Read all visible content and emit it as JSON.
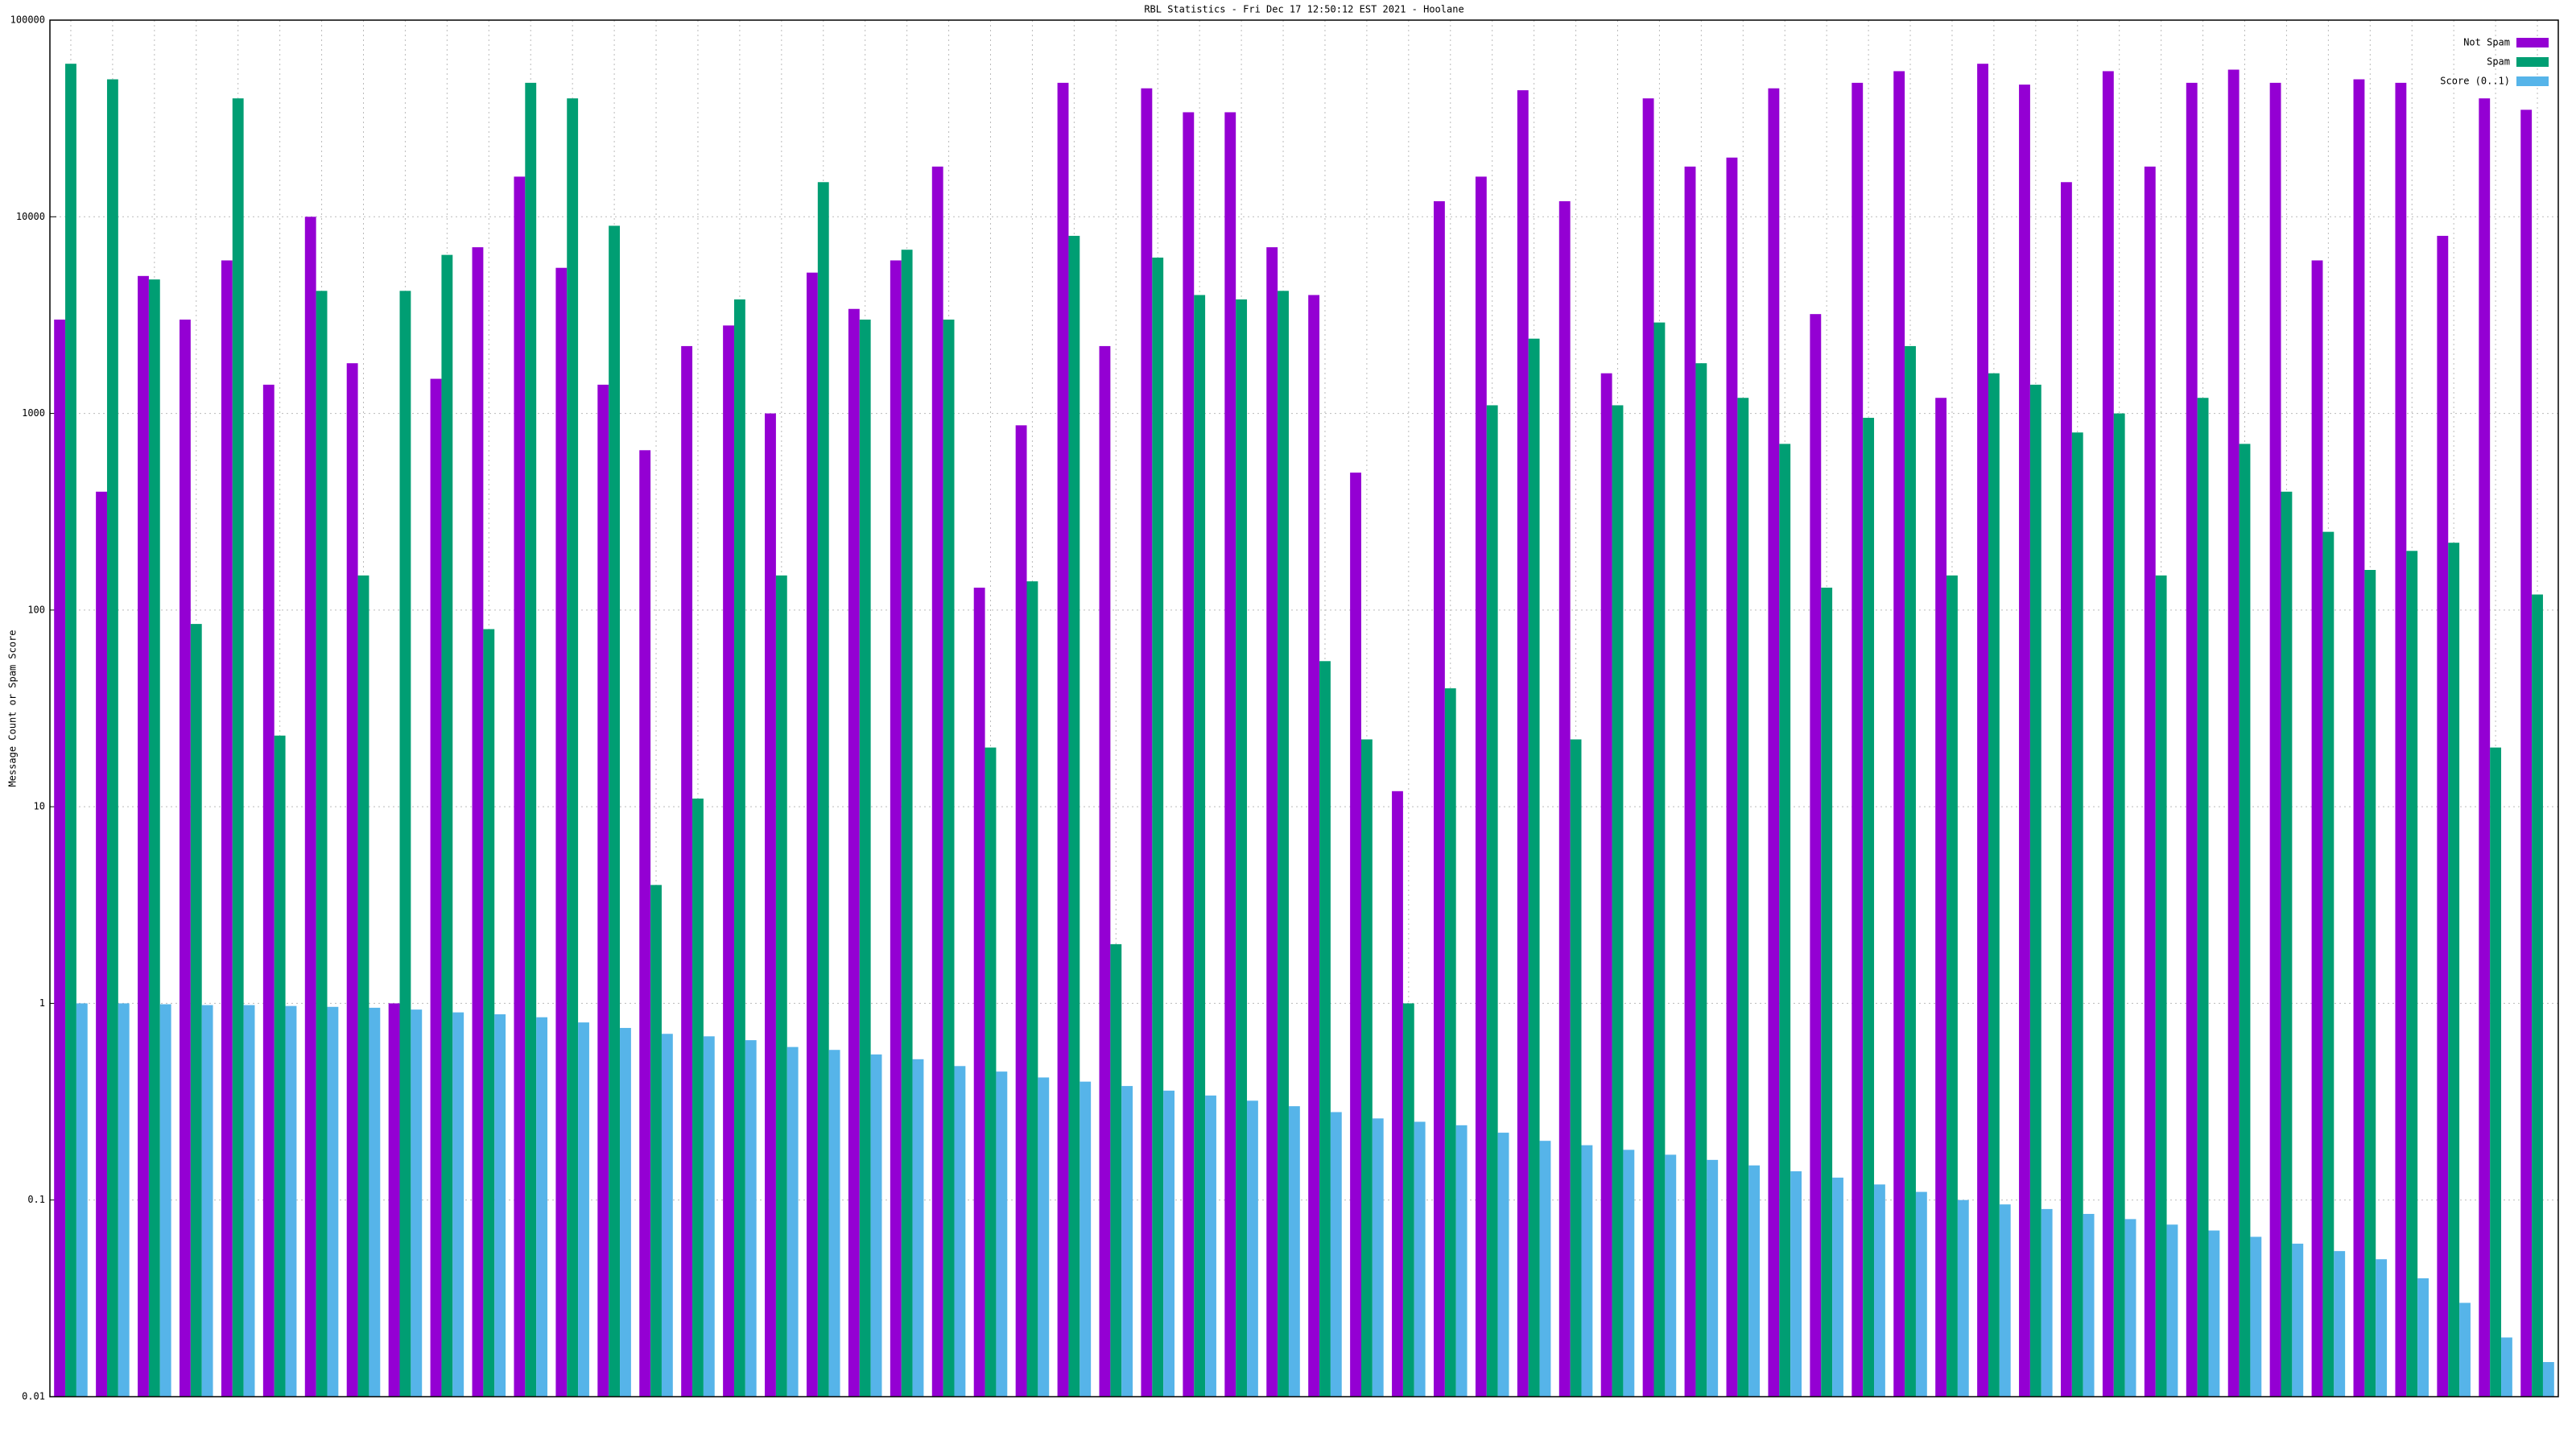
{
  "chart_data": {
    "type": "bar",
    "title": "RBL Statistics - Fri Dec 17 12:50:12 EST 2021 - Hoolane",
    "y_label": "Message Count or Spam Score",
    "log_y": true,
    "grid": true,
    "legend": "top-right",
    "ylim": [
      0.01,
      100000
    ],
    "yticks": [
      0.01,
      0.1,
      1,
      10,
      100,
      1000,
      10000,
      100000
    ],
    "categories": [
      null,
      null,
      null,
      null,
      null,
      null,
      null,
      null,
      null,
      null,
      null,
      null,
      null,
      null,
      null,
      null,
      null,
      null,
      null,
      null,
      null,
      null,
      null,
      null,
      null,
      null,
      null,
      null,
      null,
      null,
      null,
      null,
      null,
      null,
      null,
      null,
      null,
      null,
      null,
      null,
      null,
      null,
      null,
      null,
      null,
      null,
      null,
      null,
      null,
      null,
      null,
      null,
      null,
      null,
      null,
      null,
      null,
      null,
      null,
      null
    ],
    "series": [
      {
        "name": "Not Spam",
        "color": "#9400d3",
        "values": [
          3000,
          400,
          5000,
          3000,
          6000,
          1400,
          10000,
          1800,
          1,
          1500,
          7000,
          16000,
          5500,
          1400,
          650,
          2200,
          2800,
          1000,
          5200,
          3400,
          6000,
          18000,
          130,
          870,
          48000,
          2200,
          45000,
          34000,
          34000,
          7000,
          4000,
          500,
          12,
          12000,
          16000,
          44000,
          12000,
          1600,
          40000,
          18000,
          20000,
          45000,
          3200,
          48000,
          55000,
          1200,
          60000,
          47000,
          15000,
          55000,
          18000,
          48000,
          56000,
          48000,
          6000,
          50000,
          48000,
          8000,
          40000,
          35000
        ]
      },
      {
        "name": "Spam",
        "color": "#009e73",
        "values": [
          60000,
          50000,
          4800,
          85,
          40000,
          23,
          4200,
          150,
          4200,
          6400,
          80,
          48000,
          40000,
          9000,
          4,
          11,
          3800,
          150,
          15000,
          3000,
          6800,
          3000,
          20,
          140,
          8000,
          2,
          6200,
          4000,
          3800,
          4200,
          55,
          22,
          1,
          40,
          1100,
          2400,
          22,
          1100,
          2900,
          1800,
          1200,
          700,
          130,
          950,
          2200,
          150,
          1600,
          1400,
          800,
          1000,
          150,
          1200,
          700,
          400,
          250,
          160,
          200,
          220,
          20,
          120
        ]
      },
      {
        "name": "Score (0..1)",
        "color": "#56b4e9",
        "values": [
          1,
          1,
          0.99,
          0.98,
          0.98,
          0.97,
          0.96,
          0.95,
          0.93,
          0.9,
          0.88,
          0.85,
          0.8,
          0.75,
          0.7,
          0.68,
          0.65,
          0.6,
          0.58,
          0.55,
          0.52,
          0.48,
          0.45,
          0.42,
          0.4,
          0.38,
          0.36,
          0.34,
          0.32,
          0.3,
          0.28,
          0.26,
          0.25,
          0.24,
          0.22,
          0.2,
          0.19,
          0.18,
          0.17,
          0.16,
          0.15,
          0.14,
          0.13,
          0.12,
          0.11,
          0.1,
          0.095,
          0.09,
          0.085,
          0.08,
          0.075,
          0.07,
          0.065,
          0.06,
          0.055,
          0.05,
          0.04,
          0.03,
          0.02,
          0.015
        ]
      }
    ]
  }
}
